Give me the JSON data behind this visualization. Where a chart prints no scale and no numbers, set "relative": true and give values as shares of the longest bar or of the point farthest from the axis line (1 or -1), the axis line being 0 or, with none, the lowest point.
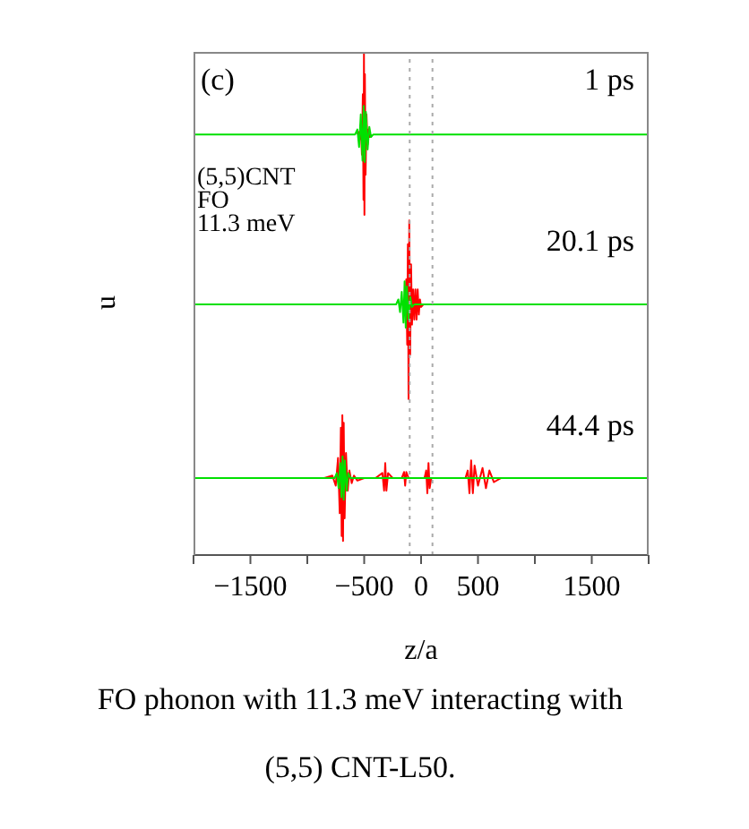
{
  "chart_data": {
    "type": "line",
    "relative": true,
    "xlabel": "z/a",
    "ylabel": "u",
    "tick_labels": "x",
    "xlim": [
      -2000,
      2000
    ],
    "xticks": [
      {
        "value": -2000,
        "label": null
      },
      {
        "value": -1500,
        "label": "−1500"
      },
      {
        "value": -1000,
        "label": null
      },
      {
        "value": -500,
        "label": "−500"
      },
      {
        "value": 0,
        "label": "0"
      },
      {
        "value": 500,
        "label": "500"
      },
      {
        "value": 1000,
        "label": null
      },
      {
        "value": 1500,
        "label": "1500"
      },
      {
        "value": 2000,
        "label": null
      }
    ],
    "ref_lines": [
      {
        "axis": "x",
        "value": -100,
        "label": null,
        "color": "#aaaaaa",
        "line_style": "dotted"
      },
      {
        "axis": "x",
        "value": 100,
        "label": null,
        "color": "#aaaaaa",
        "line_style": "dotted"
      }
    ],
    "annotations": [
      "(c)",
      "1 ps",
      "(5,5)CNT\nFO\n11.3 meV",
      "20.1 ps",
      "44.4 ps",
      "FO phonon with 11.3 meV interacting with (5,5) CNT-L50."
    ],
    "series": [
      {
        "color": "#ff0000",
        "x": [
          -560,
          -550,
          -540,
          -530,
          -520,
          -512,
          -506,
          -502,
          -498,
          -494,
          -488,
          -480,
          -470,
          -460,
          -450,
          -440
        ],
        "values": [
          0.836,
          0.841,
          0.826,
          0.856,
          0.796,
          0.916,
          0.706,
          1.0,
          0.676,
          0.956,
          0.756,
          0.876,
          0.816,
          0.846,
          0.831,
          0.836
        ]
      },
      {
        "color": "#00e000",
        "x": [
          -2000,
          -580,
          -560,
          -545,
          -530,
          -515,
          -505,
          -495,
          -485,
          -470,
          -455,
          -440,
          -420,
          2000
        ],
        "values": [
          0.836,
          0.836,
          0.846,
          0.811,
          0.876,
          0.784,
          0.893,
          0.781,
          0.881,
          0.806,
          0.851,
          0.831,
          0.836,
          0.836
        ]
      },
      {
        "color": "#ff0000",
        "x": [
          -140,
          -130,
          -122,
          -116,
          -110,
          -104,
          -96,
          -88,
          -80,
          -70,
          -60,
          -50,
          -40,
          -30,
          -20,
          -10,
          0,
          20
        ],
        "values": [
          0.498,
          0.548,
          0.418,
          0.618,
          0.31,
          0.665,
          0.398,
          0.578,
          0.458,
          0.528,
          0.468,
          0.528,
          0.468,
          0.528,
          0.478,
          0.508,
          0.493,
          0.498
        ]
      },
      {
        "color": "#00e000",
        "x": [
          -2000,
          -220,
          -200,
          -185,
          -170,
          -155,
          -145,
          -135,
          -125,
          -110,
          -95,
          -80,
          -60,
          2000
        ],
        "values": [
          0.498,
          0.498,
          0.508,
          0.483,
          0.523,
          0.462,
          0.544,
          0.452,
          0.534,
          0.468,
          0.513,
          0.493,
          0.498,
          0.498
        ]
      },
      {
        "color": "#ff0000",
        "x": [
          -850,
          -780,
          -750,
          -730,
          -715,
          -705,
          -698,
          -692,
          -686,
          -680,
          -672,
          -660,
          -645,
          -630,
          -610,
          -590,
          -560,
          -500,
          -400,
          -340,
          -325,
          -315,
          -305,
          -290,
          -250,
          -170,
          -150,
          -140,
          -130,
          -110,
          -50,
          30,
          45,
          55,
          65,
          75,
          90,
          200,
          390,
          410,
          425,
          440,
          455,
          470,
          500,
          540,
          570,
          600,
          640,
          700
        ],
        "values": [
          0.153,
          0.158,
          0.138,
          0.193,
          0.083,
          0.253,
          0.038,
          0.278,
          0.028,
          0.263,
          0.073,
          0.203,
          0.128,
          0.168,
          0.143,
          0.158,
          0.148,
          0.153,
          0.153,
          0.163,
          0.128,
          0.183,
          0.128,
          0.163,
          0.153,
          0.153,
          0.165,
          0.138,
          0.165,
          0.153,
          0.153,
          0.153,
          0.168,
          0.123,
          0.183,
          0.133,
          0.153,
          0.153,
          0.153,
          0.168,
          0.123,
          0.188,
          0.123,
          0.178,
          0.138,
          0.173,
          0.133,
          0.168,
          0.145,
          0.153
        ]
      },
      {
        "color": "#00e000",
        "x": [
          -2000,
          -760,
          -740,
          -725,
          -710,
          -700,
          -690,
          -680,
          -670,
          -655,
          -640,
          -620,
          2000
        ],
        "values": [
          0.153,
          0.153,
          0.163,
          0.133,
          0.183,
          0.115,
          0.196,
          0.11,
          0.188,
          0.128,
          0.163,
          0.153,
          0.153
        ]
      }
    ]
  }
}
